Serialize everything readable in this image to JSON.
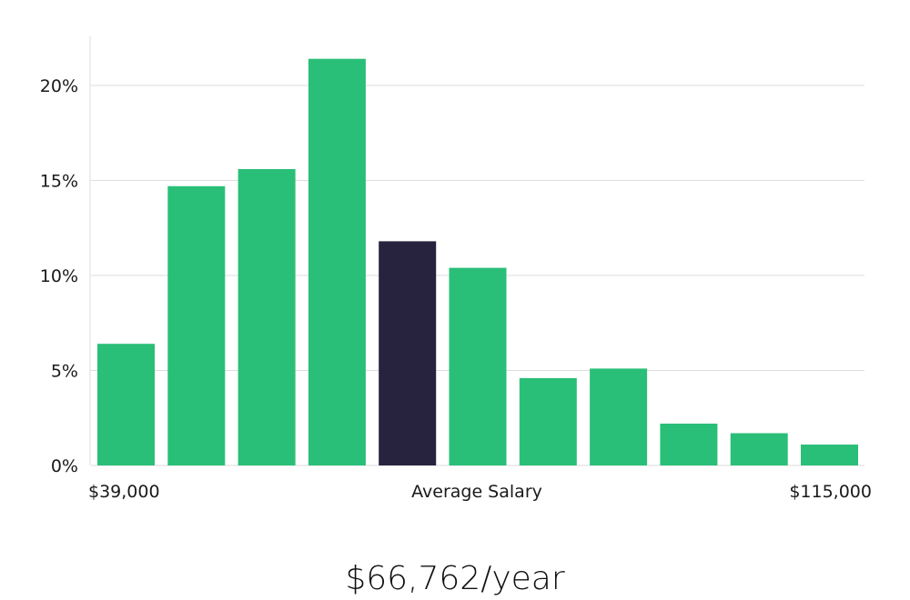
{
  "chart_data": {
    "type": "bar",
    "values": [
      6.4,
      14.7,
      15.6,
      21.4,
      11.8,
      10.4,
      4.6,
      5.1,
      2.2,
      1.7,
      1.1
    ],
    "highlight_index": 4,
    "colors": {
      "bar": "#2abf78",
      "highlight": "#27233f",
      "grid": "#dddddd"
    },
    "yticks": [
      0,
      5,
      10,
      15,
      20
    ],
    "ytick_labels": [
      "0%",
      "5%",
      "10%",
      "15%",
      "20%"
    ],
    "ylim": [
      0,
      22.5
    ],
    "grid": true,
    "x_start_label": "$39,000",
    "x_center_label": "Average Salary",
    "x_end_label": "$115,000",
    "average_salary": "$66,762/year"
  }
}
